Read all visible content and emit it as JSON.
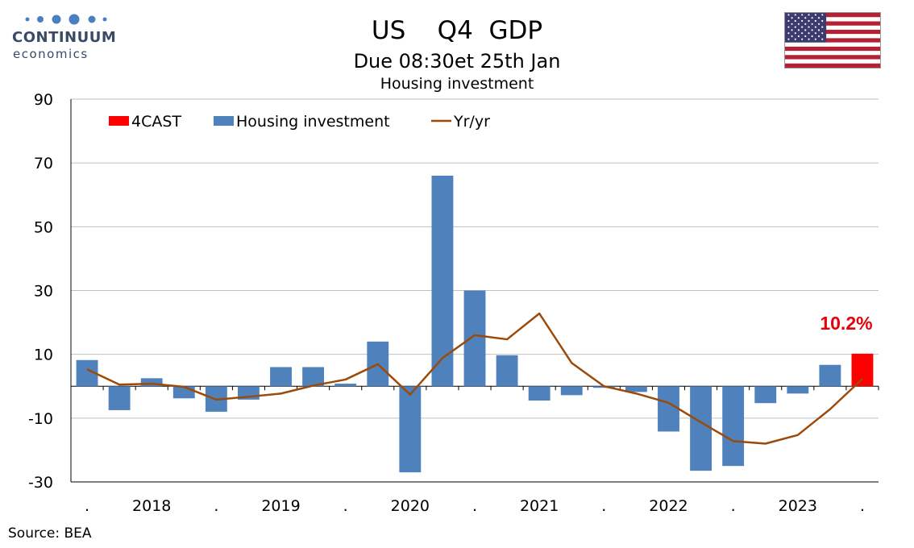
{
  "brand": {
    "name": "CONTINUUM",
    "sub": "economics",
    "colors": {
      "text": "#3a4a66",
      "dots": "#4a7fc1"
    }
  },
  "header": {
    "title": "US    Q4  GDP",
    "subtitle": "Due 08:30et 25th Jan",
    "chart_title": "Housing investment"
  },
  "flag_icon": "us-flag-icon",
  "source": "Source: BEA",
  "chart_data": {
    "type": "bar",
    "title": "Housing investment",
    "ylim": [
      -30,
      90
    ],
    "yticks": [
      -30,
      -10,
      10,
      30,
      50,
      70,
      90
    ],
    "grid": true,
    "legend_position": "top-left",
    "x_tick_labels": [
      ".",
      "2018",
      ".",
      "2019",
      ".",
      "2020",
      ".",
      "2021",
      ".",
      "2022",
      ".",
      "2023",
      "."
    ],
    "categories": [
      "2017 Q4",
      "2018 Q1",
      "2018 Q2",
      "2018 Q3",
      "2018 Q4",
      "2019 Q1",
      "2019 Q2",
      "2019 Q3",
      "2019 Q4",
      "2020 Q1",
      "2020 Q2",
      "2020 Q3",
      "2020 Q4",
      "2021 Q1",
      "2021 Q2",
      "2021 Q3",
      "2021 Q4",
      "2022 Q1",
      "2022 Q2",
      "2022 Q3",
      "2022 Q4",
      "2023 Q1",
      "2023 Q2",
      "2023 Q3",
      "2023 Q4"
    ],
    "series": [
      {
        "name": "4CAST",
        "type": "bar",
        "color": "#ff0000",
        "values": [
          null,
          null,
          null,
          null,
          null,
          null,
          null,
          null,
          null,
          null,
          null,
          null,
          null,
          null,
          null,
          null,
          null,
          null,
          null,
          null,
          null,
          null,
          null,
          null,
          10.2
        ]
      },
      {
        "name": "Housing investment",
        "type": "bar",
        "color": "#4f81bd",
        "values": [
          8.2,
          -7.5,
          2.5,
          -3.8,
          -8.0,
          -4.2,
          6.0,
          6.0,
          0.8,
          14.0,
          -27.0,
          66.0,
          30.0,
          9.7,
          -4.5,
          -2.8,
          -0.5,
          -1.8,
          -14.2,
          -26.5,
          -25.0,
          -5.3,
          -2.3,
          6.7,
          null
        ]
      },
      {
        "name": "Yr/yr",
        "type": "line",
        "color": "#9c4a0a",
        "values": [
          5.3,
          0.5,
          0.8,
          -0.2,
          -4.2,
          -3.3,
          -2.3,
          0.2,
          2.1,
          6.9,
          -2.6,
          8.8,
          16.0,
          14.7,
          22.8,
          7.3,
          0.0,
          -2.3,
          -5.2,
          -11.3,
          -17.2,
          -18.0,
          -15.3,
          -7.2,
          2.3
        ]
      }
    ],
    "annotation": {
      "text": "10.2%",
      "color": "#e8000b"
    }
  }
}
